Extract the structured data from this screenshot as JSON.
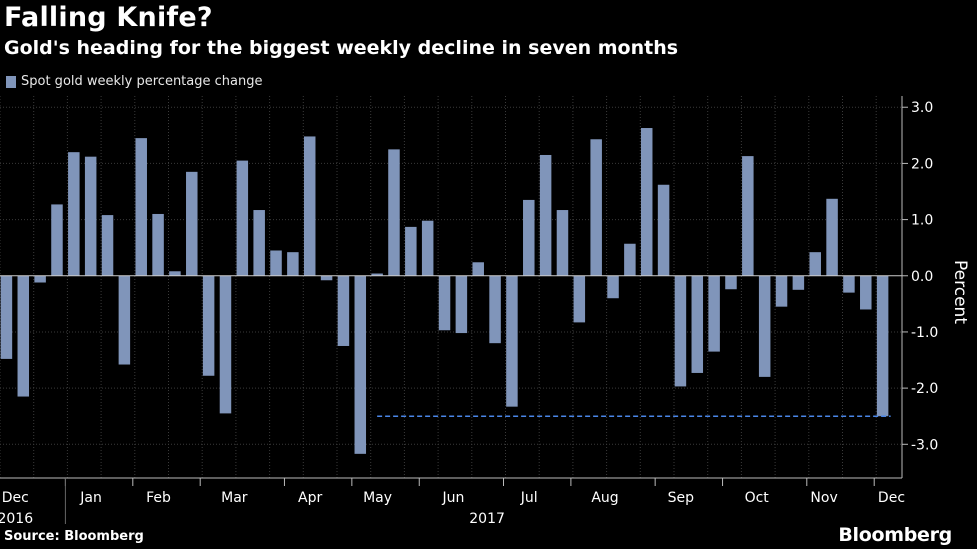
{
  "title": "Falling Knife?",
  "subtitle": "Gold's heading for the biggest weekly decline in seven months",
  "source": "Source: Bloomberg",
  "brand": "Bloomberg",
  "colors": {
    "bar": "#8095ba",
    "reference_line": "#4a86e8",
    "grid": "#3a3a3a",
    "axis": "#bbbbbb"
  },
  "chart_data": {
    "type": "bar",
    "legend": [
      "Spot gold weekly percentage change"
    ],
    "ylabel": "Percent",
    "ylim": [
      -3.6,
      3.2
    ],
    "yticks": [
      3.0,
      2.0,
      1.0,
      0.0,
      -1.0,
      -2.0,
      -3.0
    ],
    "ytick_labels": [
      "3.0",
      "2.0",
      "1.0",
      "0.0",
      "-1.0",
      "-2.0",
      "-3.0"
    ],
    "values": [
      -1.48,
      -2.15,
      -0.12,
      1.27,
      2.2,
      2.12,
      1.08,
      -1.58,
      2.45,
      1.1,
      0.08,
      1.85,
      -1.78,
      -2.45,
      2.05,
      1.17,
      0.45,
      0.42,
      2.48,
      -0.08,
      -1.25,
      -3.17,
      0.04,
      2.25,
      0.87,
      0.98,
      -0.97,
      -1.02,
      0.24,
      -1.2,
      -2.33,
      1.35,
      2.15,
      1.17,
      -0.83,
      2.43,
      -0.4,
      0.57,
      2.63,
      1.62,
      -1.97,
      -1.73,
      -1.35,
      -0.24,
      2.13,
      -1.8,
      -0.55,
      -0.25,
      0.42,
      1.37,
      -0.3,
      -0.6,
      -2.5
    ],
    "reference_line": {
      "value": -2.5,
      "from_index": 22,
      "to_index": 52,
      "style": "dashed"
    },
    "month_labels": [
      {
        "label": "Dec",
        "index": 1
      },
      {
        "label": "Jan",
        "index": 5.5
      },
      {
        "label": "Feb",
        "index": 9.5
      },
      {
        "label": "Mar",
        "index": 14
      },
      {
        "label": "Apr",
        "index": 18.5
      },
      {
        "label": "May",
        "index": 22.5
      },
      {
        "label": "Jun",
        "index": 27
      },
      {
        "label": "Jul",
        "index": 31.5
      },
      {
        "label": "Aug",
        "index": 36
      },
      {
        "label": "Sep",
        "index": 40.5
      },
      {
        "label": "Oct",
        "index": 45
      },
      {
        "label": "Nov",
        "index": 49
      },
      {
        "label": "Dec",
        "index": 53
      }
    ],
    "year_labels": [
      {
        "label": "2016",
        "index": 1
      },
      {
        "label": "2017",
        "index": 29
      }
    ]
  }
}
